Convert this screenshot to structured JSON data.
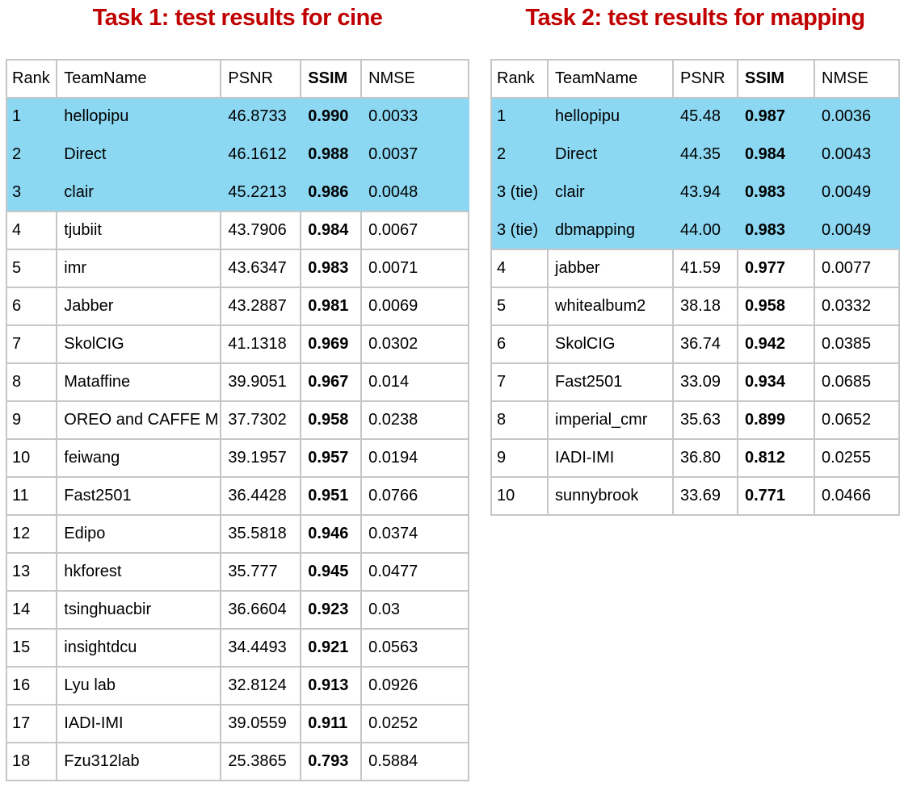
{
  "colors": {
    "title": "#C00000",
    "highlight": "#8CD8F2",
    "border": "#C6C6C6",
    "text": "#000000"
  },
  "task1": {
    "title": "Task 1: test results for cine",
    "columns": [
      "Rank",
      "TeamName",
      "PSNR",
      "SSIM",
      "NMSE"
    ],
    "rows": [
      {
        "rank": "1",
        "team": "hellopipu",
        "psnr": "46.8733",
        "ssim": "0.990",
        "nmse": "0.0033",
        "highlight": true
      },
      {
        "rank": "2",
        "team": "Direct",
        "psnr": "46.1612",
        "ssim": "0.988",
        "nmse": "0.0037",
        "highlight": true
      },
      {
        "rank": "3",
        "team": "clair",
        "psnr": "45.2213",
        "ssim": "0.986",
        "nmse": "0.0048",
        "highlight": true
      },
      {
        "rank": "4",
        "team": "tjubiit",
        "psnr": "43.7906",
        "ssim": "0.984",
        "nmse": "0.0067",
        "highlight": false
      },
      {
        "rank": "5",
        "team": "imr",
        "psnr": "43.6347",
        "ssim": "0.983",
        "nmse": "0.0071",
        "highlight": false
      },
      {
        "rank": "6",
        "team": "Jabber",
        "psnr": "43.2887",
        "ssim": "0.981",
        "nmse": "0.0069",
        "highlight": false
      },
      {
        "rank": "7",
        "team": "SkolCIG",
        "psnr": "41.1318",
        "ssim": "0.969",
        "nmse": "0.0302",
        "highlight": false
      },
      {
        "rank": "8",
        "team": "Mataffine",
        "psnr": "39.9051",
        "ssim": "0.967",
        "nmse": "0.014",
        "highlight": false
      },
      {
        "rank": "9",
        "team": "OREO and CAFFE M",
        "psnr": "37.7302",
        "ssim": "0.958",
        "nmse": "0.0238",
        "highlight": false
      },
      {
        "rank": "10",
        "team": "feiwang",
        "psnr": "39.1957",
        "ssim": "0.957",
        "nmse": "0.0194",
        "highlight": false
      },
      {
        "rank": "11",
        "team": "Fast2501",
        "psnr": "36.4428",
        "ssim": "0.951",
        "nmse": "0.0766",
        "highlight": false
      },
      {
        "rank": "12",
        "team": "Edipo",
        "psnr": "35.5818",
        "ssim": "0.946",
        "nmse": "0.0374",
        "highlight": false
      },
      {
        "rank": "13",
        "team": "hkforest",
        "psnr": "35.777",
        "ssim": "0.945",
        "nmse": "0.0477",
        "highlight": false
      },
      {
        "rank": "14",
        "team": "tsinghuacbir",
        "psnr": "36.6604",
        "ssim": "0.923",
        "nmse": "0.03",
        "highlight": false
      },
      {
        "rank": "15",
        "team": "insightdcu",
        "psnr": "34.4493",
        "ssim": "0.921",
        "nmse": "0.0563",
        "highlight": false
      },
      {
        "rank": "16",
        "team": "Lyu lab",
        "psnr": "32.8124",
        "ssim": "0.913",
        "nmse": "0.0926",
        "highlight": false
      },
      {
        "rank": "17",
        "team": "IADI-IMI",
        "psnr": "39.0559",
        "ssim": "0.911",
        "nmse": "0.0252",
        "highlight": false
      },
      {
        "rank": "18",
        "team": "Fzu312lab",
        "psnr": "25.3865",
        "ssim": "0.793",
        "nmse": "0.5884",
        "highlight": false
      }
    ]
  },
  "task2": {
    "title": "Task 2: test results for mapping",
    "columns": [
      "Rank",
      "TeamName",
      "PSNR",
      "SSIM",
      "NMSE"
    ],
    "rows": [
      {
        "rank": "1",
        "team": "hellopipu",
        "psnr": "45.48",
        "ssim": "0.987",
        "nmse": "0.0036",
        "highlight": true
      },
      {
        "rank": "2",
        "team": "Direct",
        "psnr": "44.35",
        "ssim": "0.984",
        "nmse": "0.0043",
        "highlight": true
      },
      {
        "rank": "3 (tie)",
        "team": "clair",
        "psnr": "43.94",
        "ssim": "0.983",
        "nmse": "0.0049",
        "highlight": true
      },
      {
        "rank": "3 (tie)",
        "team": "dbmapping",
        "psnr": "44.00",
        "ssim": "0.983",
        "nmse": "0.0049",
        "highlight": true
      },
      {
        "rank": "4",
        "team": "jabber",
        "psnr": "41.59",
        "ssim": "0.977",
        "nmse": "0.0077",
        "highlight": false
      },
      {
        "rank": "5",
        "team": "whitealbum2",
        "psnr": "38.18",
        "ssim": "0.958",
        "nmse": "0.0332",
        "highlight": false
      },
      {
        "rank": "6",
        "team": "SkolCIG",
        "psnr": "36.74",
        "ssim": "0.942",
        "nmse": "0.0385",
        "highlight": false
      },
      {
        "rank": "7",
        "team": "Fast2501",
        "psnr": "33.09",
        "ssim": "0.934",
        "nmse": "0.0685",
        "highlight": false
      },
      {
        "rank": "8",
        "team": "imperial_cmr",
        "psnr": "35.63",
        "ssim": "0.899",
        "nmse": "0.0652",
        "highlight": false
      },
      {
        "rank": "9",
        "team": "IADI-IMI",
        "psnr": "36.80",
        "ssim": "0.812",
        "nmse": "0.0255",
        "highlight": false
      },
      {
        "rank": "10",
        "team": "sunnybrook",
        "psnr": "33.69",
        "ssim": "0.771",
        "nmse": "0.0466",
        "highlight": false
      }
    ]
  }
}
